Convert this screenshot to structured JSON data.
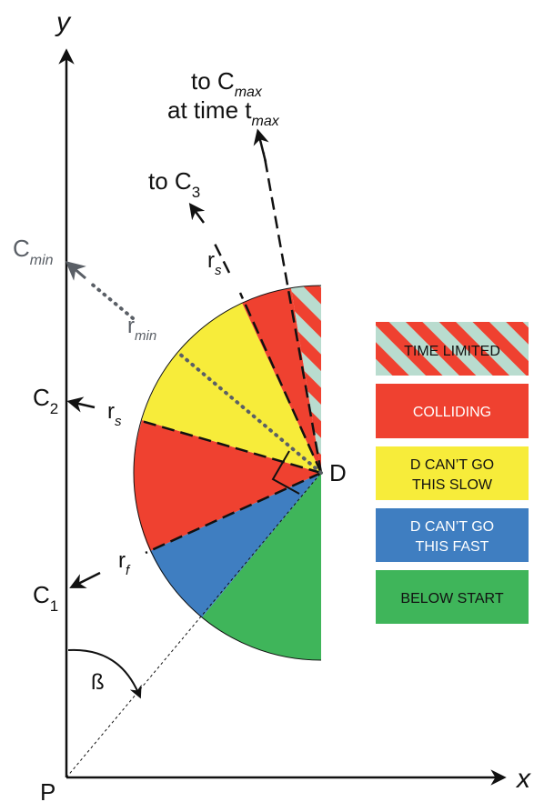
{
  "axes": {
    "x_label": "x",
    "y_label": "y",
    "origin_label": "P"
  },
  "points": {
    "D": "D",
    "C1": {
      "base": "C",
      "sub": "1"
    },
    "C2": {
      "base": "C",
      "sub": "2"
    },
    "Cmin": {
      "base": "C",
      "sub": "min"
    }
  },
  "annotations": {
    "to_cmax_line1": {
      "text": "to C",
      "sub": "max"
    },
    "to_cmax_line2": {
      "text": "at time t",
      "sub": "max"
    },
    "to_c3": {
      "text": "to C",
      "sub": "3"
    },
    "r_s_upper": {
      "base": "r",
      "sub": "s"
    },
    "r_s_lower": {
      "base": "r",
      "sub": "s"
    },
    "r_min": {
      "base": "r",
      "sub": "min"
    },
    "r_f": {
      "base": "r",
      "sub": "f"
    },
    "beta": "ß"
  },
  "legend": [
    {
      "key": "time_limited",
      "lines": [
        "TIME LIMITED"
      ],
      "text_color": "#111111",
      "pattern": "stripes",
      "color": "#ef4130",
      "stripe_color": "#b9dccf"
    },
    {
      "key": "colliding",
      "lines": [
        "COLLIDING"
      ],
      "text_color": "#ffffff",
      "color": "#ef4130"
    },
    {
      "key": "too_slow",
      "lines": [
        "D CAN’T GO",
        "THIS SLOW"
      ],
      "text_color": "#111111",
      "color": "#f7ec3a"
    },
    {
      "key": "too_fast",
      "lines": [
        "D CAN’T GO",
        "THIS FAST"
      ],
      "text_color": "#ffffff",
      "color": "#3f7ec1"
    },
    {
      "key": "below_start",
      "lines": [
        "BELOW START"
      ],
      "text_color": "#111111",
      "color": "#3fb55a"
    }
  ],
  "colors": {
    "red": "#ef4130",
    "yellow": "#f7ec3a",
    "blue": "#3f7ec1",
    "green": "#3fb55a",
    "stripe": "#b9dccf",
    "grey_dots": "#5a5f66"
  }
}
